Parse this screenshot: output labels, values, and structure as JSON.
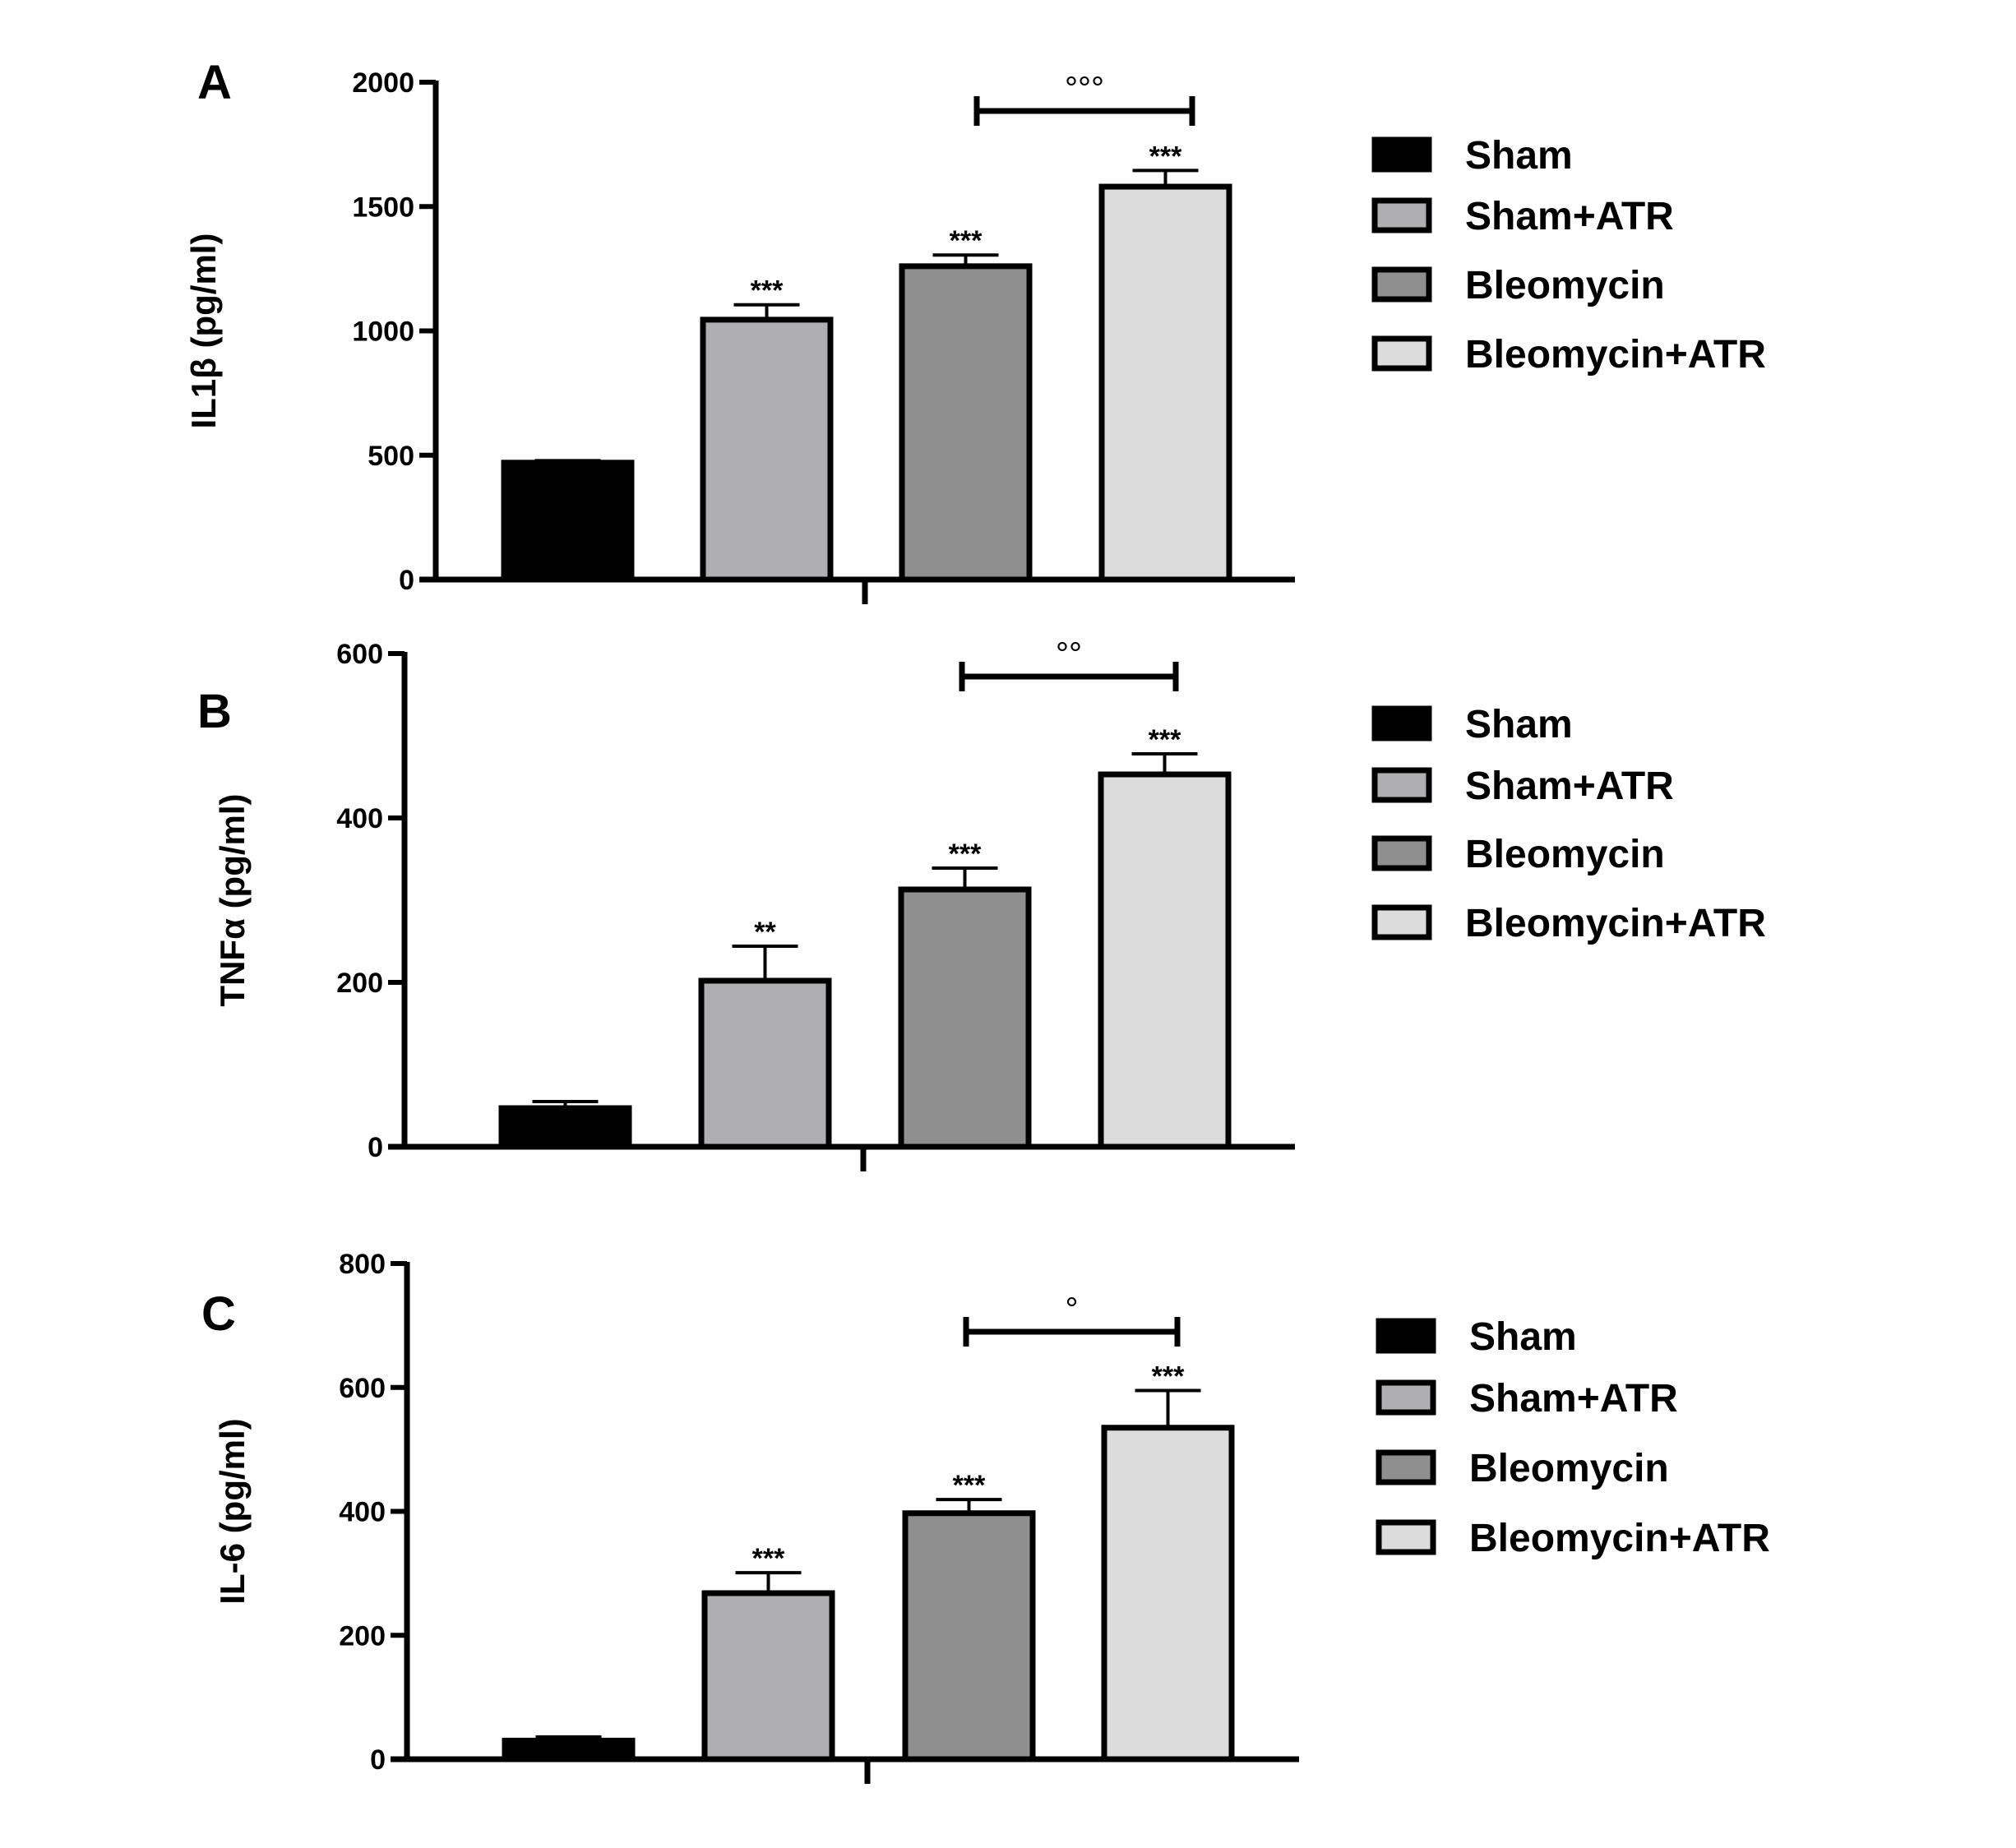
{
  "chart_data": [
    {
      "panel": "A",
      "type": "bar",
      "ylabel": "IL1β (pg/ml)",
      "ylim": [
        0,
        2000
      ],
      "yticks": [
        "0",
        "500",
        "1000",
        "1500",
        "2000"
      ],
      "categories": [
        "Sham",
        "Sham+ATR",
        "Bleomycin",
        "Bleomycin+ATR"
      ],
      "values": [
        470,
        1045,
        1260,
        1580
      ],
      "errors": [
        8,
        60,
        45,
        65
      ],
      "bar_colors": [
        "#000000",
        "#afafb1",
        "#8f8f8f",
        "#dcdcdc"
      ],
      "significance": [
        "",
        "***",
        "***",
        "***"
      ],
      "bracket": {
        "from": 2,
        "to": 3,
        "label": "°°°"
      },
      "legend": [
        "Sham",
        "Sham+ATR",
        "Bleomycin",
        "Bleomycin+ATR"
      ]
    },
    {
      "panel": "B",
      "type": "bar",
      "ylabel": "TNFα (pg/ml)",
      "ylim": [
        0,
        600
      ],
      "yticks": [
        "0",
        "200",
        "400",
        "600"
      ],
      "categories": [
        "Sham",
        "Sham+ATR",
        "Bleomycin",
        "Bleomycin+ATR"
      ],
      "values": [
        47,
        202,
        313,
        453
      ],
      "errors": [
        8,
        42,
        26,
        25
      ],
      "bar_colors": [
        "#000000",
        "#afafb1",
        "#8f8f8f",
        "#dcdcdc"
      ],
      "significance": [
        "",
        "**",
        "***",
        "***"
      ],
      "bracket": {
        "from": 2,
        "to": 3,
        "label": "°°"
      },
      "legend": [
        "Sham",
        "Sham+ATR",
        "Bleomycin",
        "Bleomycin+ATR"
      ]
    },
    {
      "panel": "C",
      "type": "bar",
      "ylabel": "IL-6 (pg/ml)",
      "ylim": [
        0,
        800
      ],
      "yticks": [
        "0",
        "200",
        "400",
        "600",
        "800"
      ],
      "categories": [
        "Sham",
        "Sham+ATR",
        "Bleomycin",
        "Bleomycin+ATR"
      ],
      "values": [
        30,
        268,
        397,
        535
      ],
      "errors": [
        6,
        33,
        22,
        60
      ],
      "bar_colors": [
        "#000000",
        "#afafb1",
        "#8f8f8f",
        "#dcdcdc"
      ],
      "significance": [
        "",
        "***",
        "***",
        "***"
      ],
      "bracket": {
        "from": 2,
        "to": 3,
        "label": "°"
      },
      "legend": [
        "Sham",
        "Sham+ATR",
        "Bleomycin",
        "Bleomycin+ATR"
      ]
    }
  ]
}
